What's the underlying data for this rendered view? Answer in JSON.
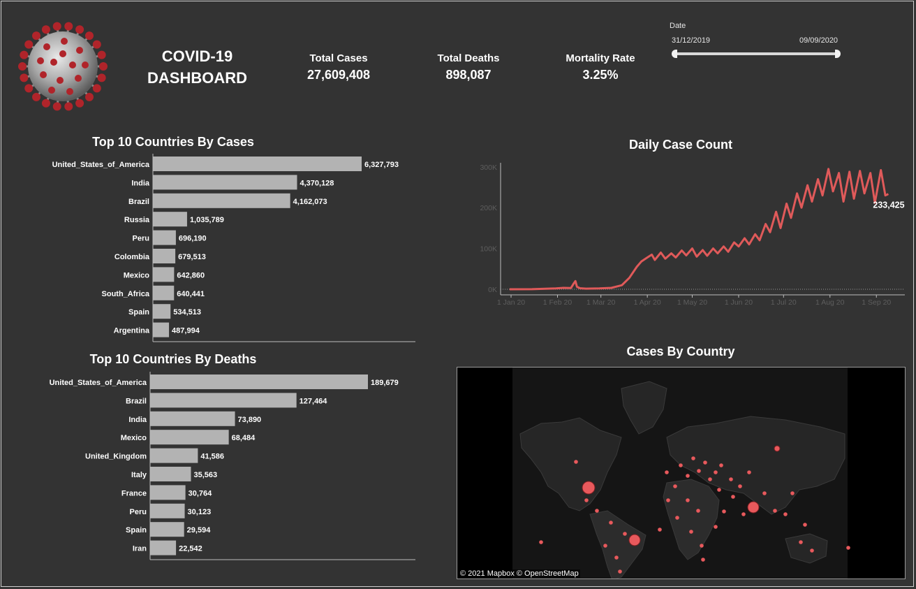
{
  "header": {
    "title_line1": "COVID-19",
    "title_line2": "DASHBOARD",
    "logo_icon": "coronavirus-icon"
  },
  "kpis": [
    {
      "label": "Total Cases",
      "value": "27,609,408"
    },
    {
      "label": "Total Deaths",
      "value": "898,087"
    },
    {
      "label": "Mortality Rate",
      "value": "3.25%"
    }
  ],
  "date_filter": {
    "label": "Date",
    "start": "31/12/2019",
    "end": "09/09/2020"
  },
  "colors": {
    "background": "#333333",
    "bar": "#b3b3b3",
    "line": "#e05a5a",
    "map_bubble": "#e8595c"
  },
  "map": {
    "title": "Cases By Country",
    "credit": "© 2021 Mapbox  © OpenStreetMap"
  },
  "chart_data": [
    {
      "type": "bar",
      "title": "Top 10 Countries By Cases",
      "orientation": "horizontal",
      "categories": [
        "United_States_of_America",
        "India",
        "Brazil",
        "Russia",
        "Peru",
        "Colombia",
        "Mexico",
        "South_Africa",
        "Spain",
        "Argentina"
      ],
      "values": [
        6327793,
        4370128,
        4162073,
        1035789,
        696190,
        679513,
        642860,
        640441,
        534513,
        487994
      ],
      "labels": [
        "6,327,793",
        "4,370,128",
        "4,162,073",
        "1,035,789",
        "696,190",
        "679,513",
        "642,860",
        "640,441",
        "534,513",
        "487,994"
      ]
    },
    {
      "type": "bar",
      "title": "Top 10 Countries By Deaths",
      "orientation": "horizontal",
      "categories": [
        "United_States_of_America",
        "Brazil",
        "India",
        "Mexico",
        "United_Kingdom",
        "Italy",
        "France",
        "Peru",
        "Spain",
        "Iran"
      ],
      "values": [
        189679,
        127464,
        73890,
        68484,
        41586,
        35563,
        30764,
        30123,
        29594,
        22542
      ],
      "labels": [
        "189,679",
        "127,464",
        "73,890",
        "68,484",
        "41,586",
        "35,563",
        "30,764",
        "30,123",
        "29,594",
        "22,542"
      ]
    },
    {
      "type": "line",
      "title": "Daily Case Count",
      "x_ticks": [
        "1 Jan 20",
        "1 Feb 20",
        "1 Mar 20",
        "1 Apr 20",
        "1 May 20",
        "1 Jun 20",
        "1 Jul 20",
        "1 Aug 20",
        "1 Sep 20"
      ],
      "y_ticks": [
        "0K",
        "100K",
        "200K",
        "300K"
      ],
      "ylim": [
        0,
        310000
      ],
      "end_label": "233,425",
      "series": [
        {
          "x": [
            "2019-12-31",
            "2020-01-15",
            "2020-01-31",
            "2020-02-05",
            "2020-02-10",
            "2020-02-12",
            "2020-02-13",
            "2020-02-14",
            "2020-02-16",
            "2020-02-20",
            "2020-02-29",
            "2020-03-08",
            "2020-03-15",
            "2020-03-20",
            "2020-03-25",
            "2020-03-28",
            "2020-04-01",
            "2020-04-04",
            "2020-04-06",
            "2020-04-10",
            "2020-04-13",
            "2020-04-17",
            "2020-04-20",
            "2020-04-24",
            "2020-04-27",
            "2020-05-01",
            "2020-05-04",
            "2020-05-08",
            "2020-05-11",
            "2020-05-15",
            "2020-05-18",
            "2020-05-22",
            "2020-05-25",
            "2020-05-29",
            "2020-06-01",
            "2020-06-05",
            "2020-06-08",
            "2020-06-12",
            "2020-06-15",
            "2020-06-19",
            "2020-06-22",
            "2020-06-26",
            "2020-06-29",
            "2020-07-03",
            "2020-07-06",
            "2020-07-10",
            "2020-07-13",
            "2020-07-17",
            "2020-07-20",
            "2020-07-24",
            "2020-07-27",
            "2020-07-31",
            "2020-08-03",
            "2020-08-07",
            "2020-08-10",
            "2020-08-14",
            "2020-08-17",
            "2020-08-21",
            "2020-08-24",
            "2020-08-28",
            "2020-08-31",
            "2020-09-04",
            "2020-09-07",
            "2020-09-09"
          ],
          "y": [
            0,
            200,
            2000,
            3500,
            3000,
            15000,
            20000,
            6000,
            2500,
            1500,
            2000,
            3500,
            10000,
            28000,
            55000,
            68000,
            78000,
            85000,
            72000,
            90000,
            75000,
            88000,
            78000,
            95000,
            83000,
            100000,
            80000,
            96000,
            82000,
            100000,
            88000,
            105000,
            92000,
            115000,
            105000,
            125000,
            110000,
            135000,
            120000,
            160000,
            140000,
            190000,
            150000,
            210000,
            175000,
            235000,
            200000,
            255000,
            215000,
            270000,
            230000,
            295000,
            240000,
            285000,
            215000,
            288000,
            222000,
            290000,
            235000,
            285000,
            212000,
            292000,
            230000,
            233425
          ]
        }
      ]
    }
  ]
}
